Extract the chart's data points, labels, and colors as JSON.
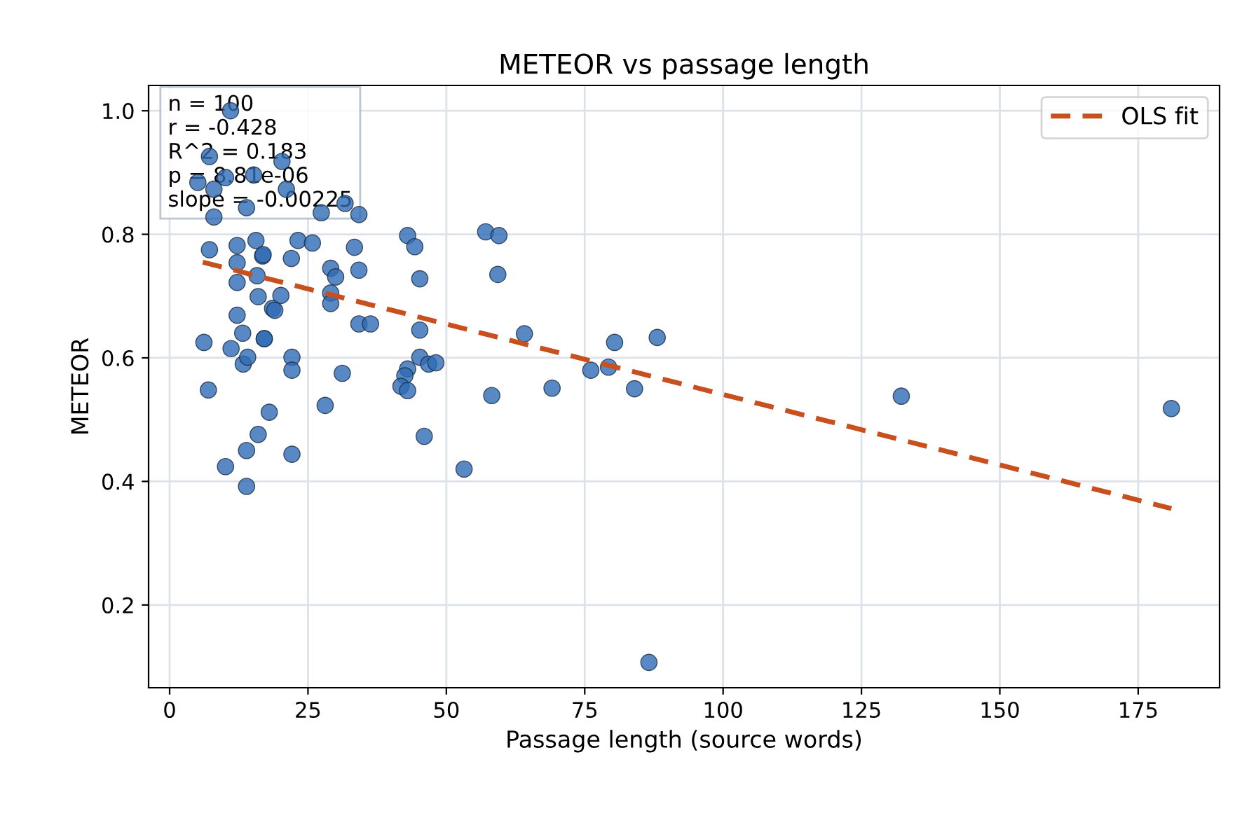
{
  "chart_data": {
    "type": "scatter",
    "title": "METEOR vs passage length",
    "xlabel": "Passage length (source words)",
    "ylabel": "METEOR",
    "xlim": [
      -3.8,
      189.7
    ],
    "ylim": [
      0.066,
      1.041
    ],
    "xticks": [
      0,
      25,
      50,
      75,
      100,
      125,
      150,
      175
    ],
    "yticks": [
      0.2,
      0.4,
      0.6,
      0.8,
      {
        "value": 1.0,
        "label": "1.0"
      }
    ],
    "grid": true,
    "legend": "top right",
    "marker": "circle",
    "annotations": [
      "n = 100\nr = -0.428\nR^2 = 0.183\np = 8.81e-06\nslope = -0.00225"
    ],
    "series": [
      {
        "color": "#2e6bb5",
        "x": [
          6.2,
          7.0,
          10.1,
          11.1,
          12.2,
          12.2,
          12.2,
          13.2,
          13.3,
          14.1,
          13.9,
          13.9,
          16.0,
          18.0,
          16.0,
          17.1,
          17.1,
          15.8,
          18.6,
          20.1,
          19.0,
          22.0,
          22.1,
          22.1,
          22.1,
          28.1,
          31.2,
          29.1,
          30.0,
          29.1,
          29.1,
          34.2,
          34.2,
          36.3,
          43.0,
          44.3,
          45.2,
          45.2,
          45.2,
          43.0,
          42.5,
          41.8,
          43.0,
          46.8,
          48.1,
          46.0,
          53.2,
          57.1,
          59.5,
          59.3,
          58.2,
          64.1,
          69.1,
          76.1,
          79.3,
          80.4,
          84.0,
          88.1,
          86.6,
          132.2,
          181.0,
          16.8,
          11.0,
          7.2,
          5.1,
          8.0,
          10.1,
          15.2,
          20.3,
          21.1,
          13.9,
          8.0,
          27.4,
          31.7,
          34.2,
          23.2,
          15.6,
          7.2,
          16.9,
          25.8,
          12.2,
          33.4
        ],
        "values": [
          0.625,
          0.548,
          0.424,
          0.615,
          0.669,
          0.722,
          0.754,
          0.64,
          0.59,
          0.601,
          0.45,
          0.392,
          0.476,
          0.512,
          0.699,
          0.631,
          0.631,
          0.733,
          0.68,
          0.701,
          0.677,
          0.761,
          0.601,
          0.58,
          0.444,
          0.523,
          0.575,
          0.745,
          0.731,
          0.705,
          0.688,
          0.742,
          0.655,
          0.655,
          0.798,
          0.78,
          0.728,
          0.645,
          0.601,
          0.582,
          0.571,
          0.554,
          0.547,
          0.59,
          0.592,
          0.473,
          0.42,
          0.804,
          0.798,
          0.735,
          0.539,
          0.639,
          0.551,
          0.58,
          0.585,
          0.625,
          0.55,
          0.633,
          0.107,
          0.538,
          0.518,
          0.765,
          1.0,
          0.926,
          0.884,
          0.873,
          0.892,
          0.896,
          0.918,
          0.873,
          0.843,
          0.828,
          0.835,
          0.85,
          0.832,
          0.79,
          0.79,
          0.775,
          0.767,
          0.786,
          0.782,
          0.779
        ]
      },
      {
        "type": "line",
        "name": "OLS fit",
        "color": "#c8501e",
        "line_style": "dashed",
        "marker": "none",
        "x": [
          6,
          181
        ],
        "values": [
          0.755,
          0.356
        ]
      }
    ]
  }
}
